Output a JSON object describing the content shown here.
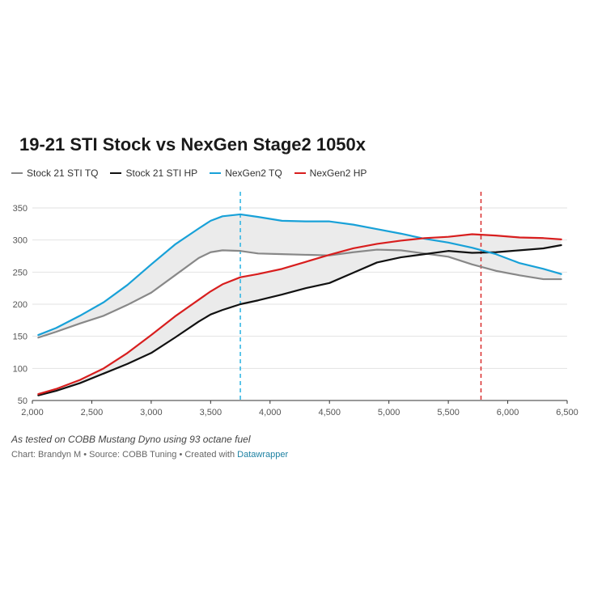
{
  "title": "19-21 STI Stock vs NexGen Stage2 1050x",
  "note": "As tested on COBB Mustang Dyno using 93 octane fuel",
  "credits": {
    "prefix": "Chart: Brandyn M • Source: COBB Tuning • Created with ",
    "link": "Datawrapper"
  },
  "chart_data": {
    "type": "line",
    "title": "19-21 STI Stock vs NexGen Stage2 1050x",
    "xlabel": "",
    "ylabel": "",
    "xlim": [
      2000,
      6500
    ],
    "ylim": [
      50,
      350
    ],
    "xticks": [
      2000,
      2500,
      3000,
      3500,
      4000,
      4500,
      5000,
      5500,
      6000,
      6500
    ],
    "xtick_labels": [
      "2,000",
      "2,500",
      "3,000",
      "3,500",
      "4,000",
      "4,500",
      "5,000",
      "5,500",
      "6,000",
      "6,500"
    ],
    "yticks": [
      50,
      100,
      150,
      200,
      250,
      300,
      350
    ],
    "ytick_labels": [
      "50",
      "100",
      "150",
      "200",
      "250",
      "300",
      "350"
    ],
    "grid": true,
    "legend_position": "top-left",
    "reference_lines": [
      {
        "x": 3750,
        "color": "#2ab2e2",
        "style": "dashed"
      },
      {
        "x": 5775,
        "color": "#d92c2c",
        "style": "dashed"
      }
    ],
    "shaded_bands": [
      {
        "between": [
          "Stock 21 STI TQ",
          "NexGen2 TQ"
        ],
        "color": "#ebebeb"
      },
      {
        "between": [
          "Stock 21 STI HP",
          "NexGen2 HP"
        ],
        "color": "#ebebeb"
      }
    ],
    "series": [
      {
        "name": "Stock 21 STI TQ",
        "color": "#888888",
        "x": [
          2050,
          2200,
          2400,
          2600,
          2800,
          3000,
          3200,
          3400,
          3500,
          3600,
          3750,
          3900,
          4100,
          4300,
          4500,
          4700,
          4900,
          5100,
          5300,
          5500,
          5700,
          5900,
          6100,
          6300,
          6450
        ],
        "y": [
          148,
          157,
          170,
          182,
          199,
          218,
          245,
          272,
          281,
          284,
          283,
          279,
          278,
          277,
          276,
          281,
          285,
          284,
          279,
          274,
          262,
          252,
          245,
          239,
          239
        ]
      },
      {
        "name": "Stock 21 STI HP",
        "color": "#111111",
        "x": [
          2050,
          2200,
          2400,
          2600,
          2800,
          3000,
          3200,
          3400,
          3500,
          3600,
          3750,
          3900,
          4100,
          4300,
          4500,
          4700,
          4900,
          5100,
          5300,
          5500,
          5700,
          5900,
          6100,
          6300,
          6450
        ],
        "y": [
          58,
          65,
          77,
          92,
          107,
          124,
          148,
          173,
          184,
          191,
          200,
          206,
          215,
          225,
          233,
          249,
          265,
          273,
          278,
          283,
          280,
          281,
          284,
          287,
          292
        ]
      },
      {
        "name": "NexGen2 TQ",
        "color": "#18a1d8",
        "x": [
          2050,
          2200,
          2400,
          2600,
          2800,
          3000,
          3200,
          3400,
          3500,
          3600,
          3750,
          3900,
          4100,
          4300,
          4500,
          4700,
          4900,
          5100,
          5300,
          5500,
          5700,
          5900,
          6100,
          6300,
          6450
        ],
        "y": [
          152,
          163,
          182,
          203,
          230,
          262,
          293,
          318,
          330,
          337,
          340,
          336,
          330,
          329,
          329,
          324,
          317,
          310,
          302,
          296,
          288,
          278,
          264,
          255,
          247
        ]
      },
      {
        "name": "NexGen2 HP",
        "color": "#d81e1e",
        "x": [
          2050,
          2200,
          2400,
          2600,
          2800,
          3000,
          3200,
          3400,
          3500,
          3600,
          3750,
          3900,
          4100,
          4300,
          4500,
          4700,
          4900,
          5100,
          5300,
          5500,
          5700,
          5900,
          6100,
          6300,
          6450
        ],
        "y": [
          60,
          68,
          82,
          100,
          124,
          152,
          181,
          207,
          220,
          231,
          242,
          247,
          255,
          266,
          277,
          287,
          294,
          299,
          303,
          305,
          309,
          307,
          304,
          303,
          301
        ]
      }
    ]
  }
}
